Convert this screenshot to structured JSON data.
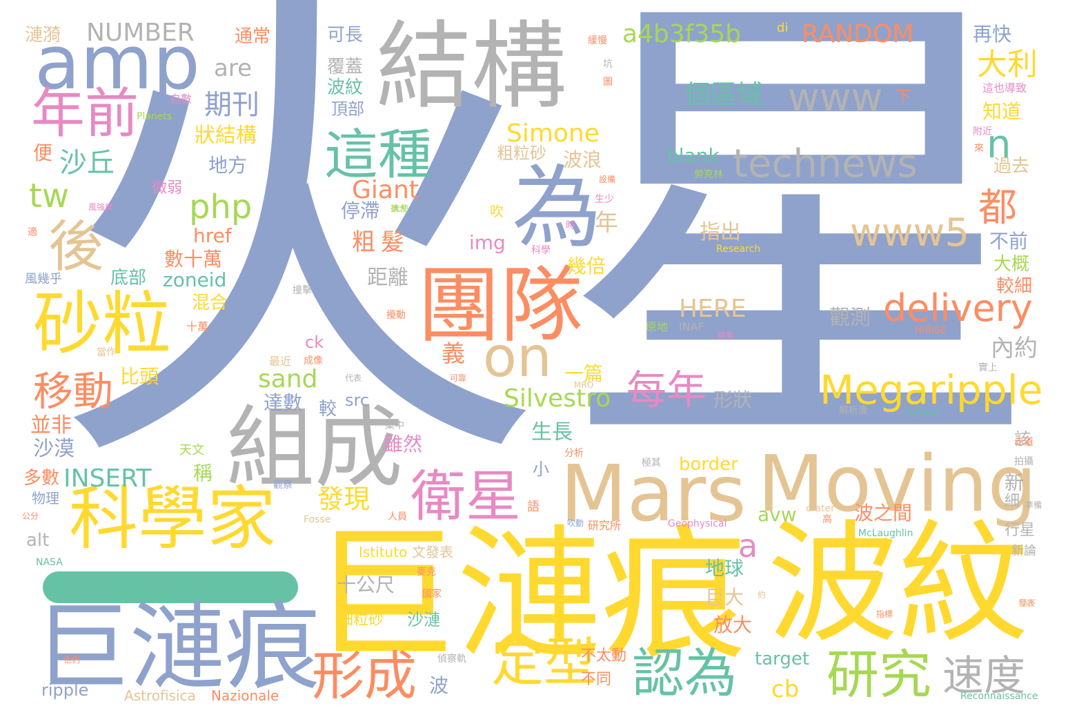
{
  "colors": {
    "blue": "#8fa2cc",
    "gray": "#b3b3b3",
    "yellow": "#ffd92f",
    "orange": "#fc8d62",
    "tan": "#e5c494",
    "green": "#a6d854",
    "teal": "#66c2a5",
    "pink": "#e78ac3"
  },
  "words": [
    {
      "id": "huo",
      "text": "火"
    },
    {
      "id": "xing",
      "text": "星"
    },
    {
      "id": "jiegou",
      "text": "結構"
    },
    {
      "id": "amp",
      "text": "amp"
    },
    {
      "id": "niangqian",
      "text": "年前"
    },
    {
      "id": "houx",
      "text": "後"
    },
    {
      "id": "shali",
      "text": "砂粒"
    },
    {
      "id": "yidong",
      "text": "移動"
    },
    {
      "id": "kexuejia",
      "text": "科學家"
    },
    {
      "id": "julianhen_big",
      "text": "巨漣痕"
    },
    {
      "id": "julianhen_blue",
      "text": "巨漣痕"
    },
    {
      "id": "bowen",
      "text": "波紋"
    },
    {
      "id": "zucheng",
      "text": "組成"
    },
    {
      "id": "tuandui",
      "text": "團隊"
    },
    {
      "id": "weixing",
      "text": "衛星"
    },
    {
      "id": "mars",
      "text": "Mars"
    },
    {
      "id": "moving",
      "text": "Moving"
    },
    {
      "id": "zhezhong",
      "text": "這種"
    },
    {
      "id": "wei",
      "text": "為"
    },
    {
      "id": "on",
      "text": "on"
    },
    {
      "id": "technews",
      "text": "technews"
    },
    {
      "id": "www",
      "text": "www"
    },
    {
      "id": "www5",
      "text": "www5"
    },
    {
      "id": "megaripple",
      "text": "Megaripple"
    },
    {
      "id": "delivery",
      "text": "delivery"
    },
    {
      "id": "xingcheng",
      "text": "形成"
    },
    {
      "id": "dingxing",
      "text": "定型"
    },
    {
      "id": "renwei",
      "text": "認為"
    },
    {
      "id": "yanjiu",
      "text": "研究"
    },
    {
      "id": "sudu",
      "text": "速度"
    },
    {
      "id": "meinian",
      "text": "每年"
    },
    {
      "id": "number",
      "text": "NUMBER"
    },
    {
      "id": "random",
      "text": "RANDOM"
    },
    {
      "id": "a4b",
      "text": "a4b3f35b"
    },
    {
      "id": "php",
      "text": "php"
    },
    {
      "id": "tw",
      "text": "tw"
    },
    {
      "id": "giant",
      "text": "Giant"
    },
    {
      "id": "simone",
      "text": "Simone"
    },
    {
      "id": "silvestro",
      "text": "Silvestro"
    },
    {
      "id": "here",
      "text": "HERE"
    },
    {
      "id": "insert",
      "text": "INSERT"
    },
    {
      "id": "sand",
      "text": "sand"
    },
    {
      "id": "dou",
      "text": "都"
    },
    {
      "id": "dali",
      "text": "大利"
    },
    {
      "id": "n",
      "text": "n"
    },
    {
      "id": "a",
      "text": "a"
    },
    {
      "id": "geququ",
      "text": "個區域"
    },
    {
      "id": "blank",
      "text": "blank"
    },
    {
      "id": "are",
      "text": "are"
    },
    {
      "id": "qikan",
      "text": "期刊"
    },
    {
      "id": "shaqiu",
      "text": "沙丘"
    },
    {
      "id": "zhuangjiegou",
      "text": "狀結構"
    },
    {
      "id": "difang",
      "text": "地方"
    },
    {
      "id": "shushiwan",
      "text": "數十萬"
    },
    {
      "id": "zoneid",
      "text": "zoneid"
    },
    {
      "id": "href",
      "text": "href"
    },
    {
      "id": "dibu",
      "text": "底部"
    },
    {
      "id": "hunhe",
      "text": "混合"
    },
    {
      "id": "bitou",
      "text": "比頭"
    },
    {
      "id": "bingfei",
      "text": "並非"
    },
    {
      "id": "shamo",
      "text": "沙漠"
    },
    {
      "id": "duoshu",
      "text": "多數"
    },
    {
      "id": "wuli",
      "text": "物理"
    },
    {
      "id": "alt",
      "text": "alt"
    },
    {
      "id": "ripple",
      "text": "ripple"
    },
    {
      "id": "nasa",
      "text": "NASA"
    },
    {
      "id": "astrofisica",
      "text": "Astrofisica"
    },
    {
      "id": "nazionale",
      "text": "Nazionale"
    },
    {
      "id": "istituto",
      "text": "Istituto"
    },
    {
      "id": "wenfabiao",
      "text": "文發表"
    },
    {
      "id": "lianyi",
      "text": "漣漪"
    },
    {
      "id": "tongchang",
      "text": "通常"
    },
    {
      "id": "kechang",
      "text": "可長"
    },
    {
      "id": "fugai",
      "text": "覆蓋"
    },
    {
      "id": "bowen_s",
      "text": "波紋"
    },
    {
      "id": "dingbu",
      "text": "頂部"
    },
    {
      "id": "ban",
      "text": "版"
    },
    {
      "id": "zailikuai",
      "text": "再快"
    },
    {
      "id": "zhidao",
      "text": "知道"
    },
    {
      "id": "guoqu",
      "text": "過去"
    },
    {
      "id": "bulang",
      "text": "波浪"
    },
    {
      "id": "culisha",
      "text": "粗粒砂"
    },
    {
      "id": "tingzhi",
      "text": "停滯"
    },
    {
      "id": "cu",
      "text": "粗"
    },
    {
      "id": "fa",
      "text": "髮"
    },
    {
      "id": "juli",
      "text": "距離"
    },
    {
      "id": "img",
      "text": "img"
    },
    {
      "id": "zhichu",
      "text": "指出"
    },
    {
      "id": "nian",
      "text": "年"
    },
    {
      "id": "jibei",
      "text": "幾倍"
    },
    {
      "id": "guance",
      "text": "觀測"
    },
    {
      "id": "neiyue",
      "text": "內約"
    },
    {
      "id": "yi",
      "text": "義"
    },
    {
      "id": "yipian",
      "text": "一篇"
    },
    {
      "id": "xingzhuang",
      "text": "形狀"
    },
    {
      "id": "buqian",
      "text": "不前"
    },
    {
      "id": "dagai",
      "text": "大概"
    },
    {
      "id": "jiaoxi",
      "text": "較細"
    },
    {
      "id": "gai",
      "text": "該"
    },
    {
      "id": "xin",
      "text": "新"
    },
    {
      "id": "xi",
      "text": "細"
    },
    {
      "id": "xingxing",
      "text": "行星"
    },
    {
      "id": "xinlun",
      "text": "新論"
    },
    {
      "id": "shengzhang",
      "text": "生長"
    },
    {
      "id": "suiran",
      "text": "雖然"
    },
    {
      "id": "src",
      "text": "src"
    },
    {
      "id": "dashu",
      "text": "達數"
    },
    {
      "id": "jiao",
      "text": "較"
    },
    {
      "id": "ck",
      "text": "ck"
    },
    {
      "id": "faxian",
      "text": "發現"
    },
    {
      "id": "xiao",
      "text": "小"
    },
    {
      "id": "cheng",
      "text": "稱"
    },
    {
      "id": "border",
      "text": "border"
    },
    {
      "id": "avw",
      "text": "avw"
    },
    {
      "id": "bozhijian",
      "text": "波之間"
    },
    {
      "id": "shigongchi",
      "text": "十公尺"
    },
    {
      "id": "diqiu",
      "text": "地球"
    },
    {
      "id": "juda",
      "text": "巨大"
    },
    {
      "id": "fangda",
      "text": "放大"
    },
    {
      "id": "xilisha",
      "text": "細粒砂"
    },
    {
      "id": "shalian",
      "text": "沙漣"
    },
    {
      "id": "target",
      "text": "target"
    },
    {
      "id": "cb",
      "text": "cb"
    },
    {
      "id": "bo",
      "text": "波"
    },
    {
      "id": "butaidong",
      "text": "不太動"
    },
    {
      "id": "butong",
      "text": "不同"
    },
    {
      "id": "bian",
      "text": "便"
    },
    {
      "id": "weiruo",
      "text": "微弱"
    },
    {
      "id": "fengjihu",
      "text": "風幾乎"
    },
    {
      "id": "xia",
      "text": "下"
    },
    {
      "id": "zheyedaozhi",
      "text": "這也導致"
    },
    {
      "id": "fujin",
      "text": "附近"
    },
    {
      "id": "di",
      "text": "di"
    },
    {
      "id": "research",
      "text": "Research"
    },
    {
      "id": "hirise",
      "text": "HiRISE"
    },
    {
      "id": "orbiter",
      "text": "Orbiter"
    },
    {
      "id": "reconnaissance",
      "text": "Reconnaissance"
    },
    {
      "id": "geophysical",
      "text": "Geophysical"
    },
    {
      "id": "mclaughlin",
      "text": "McLaughlin"
    },
    {
      "id": "fosse",
      "text": "Fosse"
    },
    {
      "id": "crater",
      "text": "crater"
    },
    {
      "id": "mro",
      "text": "MRO"
    },
    {
      "id": "inaf",
      "text": "INAF"
    },
    {
      "id": "planets",
      "text": "Planets"
    },
    {
      "id": "yuandi",
      "text": "原地"
    },
    {
      "id": "jiexidu",
      "text": "解析度"
    },
    {
      "id": "chidao",
      "text": "赤道"
    },
    {
      "id": "paishe",
      "text": "拍攝"
    },
    {
      "id": "zhunbei",
      "text": "準備"
    },
    {
      "id": "fabiao",
      "text": "發表"
    },
    {
      "id": "gongfen",
      "text": "公分"
    },
    {
      "id": "tianwen",
      "text": "天文"
    },
    {
      "id": "fenxi",
      "text": "分析"
    },
    {
      "id": "yanjiusuo",
      "text": "研究所"
    },
    {
      "id": "kexue",
      "text": "科學"
    },
    {
      "id": "chui",
      "text": "吹"
    },
    {
      "id": "zishu",
      "text": "自數"
    },
    {
      "id": "sheng",
      "text": "生少"
    },
    {
      "id": "shiwan",
      "text": "十萬"
    },
    {
      "id": "zuijin",
      "text": "最近"
    },
    {
      "id": "chengxiang",
      "text": "成像"
    },
    {
      "id": "daibiao",
      "text": "代表"
    },
    {
      "id": "kuoda",
      "text": "擴大"
    },
    {
      "id": "kekao",
      "text": "可靠"
    },
    {
      "id": "shi",
      "text": "時"
    },
    {
      "id": "jizhong",
      "text": "集中"
    },
    {
      "id": "jiqi",
      "text": "極其"
    },
    {
      "id": "guancha",
      "text": "觀察"
    },
    {
      "id": "renyuan",
      "text": "人員"
    },
    {
      "id": "chuidong",
      "text": "吹動"
    },
    {
      "id": "gao",
      "text": "高"
    },
    {
      "id": "xiaofeng",
      "text": "微風"
    },
    {
      "id": "guojia",
      "text": "國家"
    },
    {
      "id": "mai",
      "text": "麥克"
    },
    {
      "id": "zhenchaji",
      "text": "偵察軌"
    },
    {
      "id": "tamen",
      "text": "他們"
    },
    {
      "id": "zhishi",
      "text": "指標"
    },
    {
      "id": "laoke",
      "text": "勞克林"
    },
    {
      "id": "shebei",
      "text": "設備"
    },
    {
      "id": "dangzuo",
      "text": "當作"
    },
    {
      "id": "jixiang",
      "text": "跡象"
    },
    {
      "id": "shiji",
      "text": "實上"
    },
    {
      "id": "qiang",
      "text": "風強度"
    },
    {
      "id": "shi2",
      "text": "適"
    },
    {
      "id": "luo",
      "text": "落下"
    },
    {
      "id": "yue",
      "text": "約"
    },
    {
      "id": "zhuangji",
      "text": "撞擊"
    },
    {
      "id": "rao",
      "text": "擾動"
    },
    {
      "id": "yuyan",
      "text": "語"
    },
    {
      "id": "dashi",
      "text": "大使"
    },
    {
      "id": "kang",
      "text": "坑"
    },
    {
      "id": "tu",
      "text": "圖"
    },
    {
      "id": "lai",
      "text": "來"
    },
    {
      "id": "huanman",
      "text": "緩慢"
    }
  ]
}
